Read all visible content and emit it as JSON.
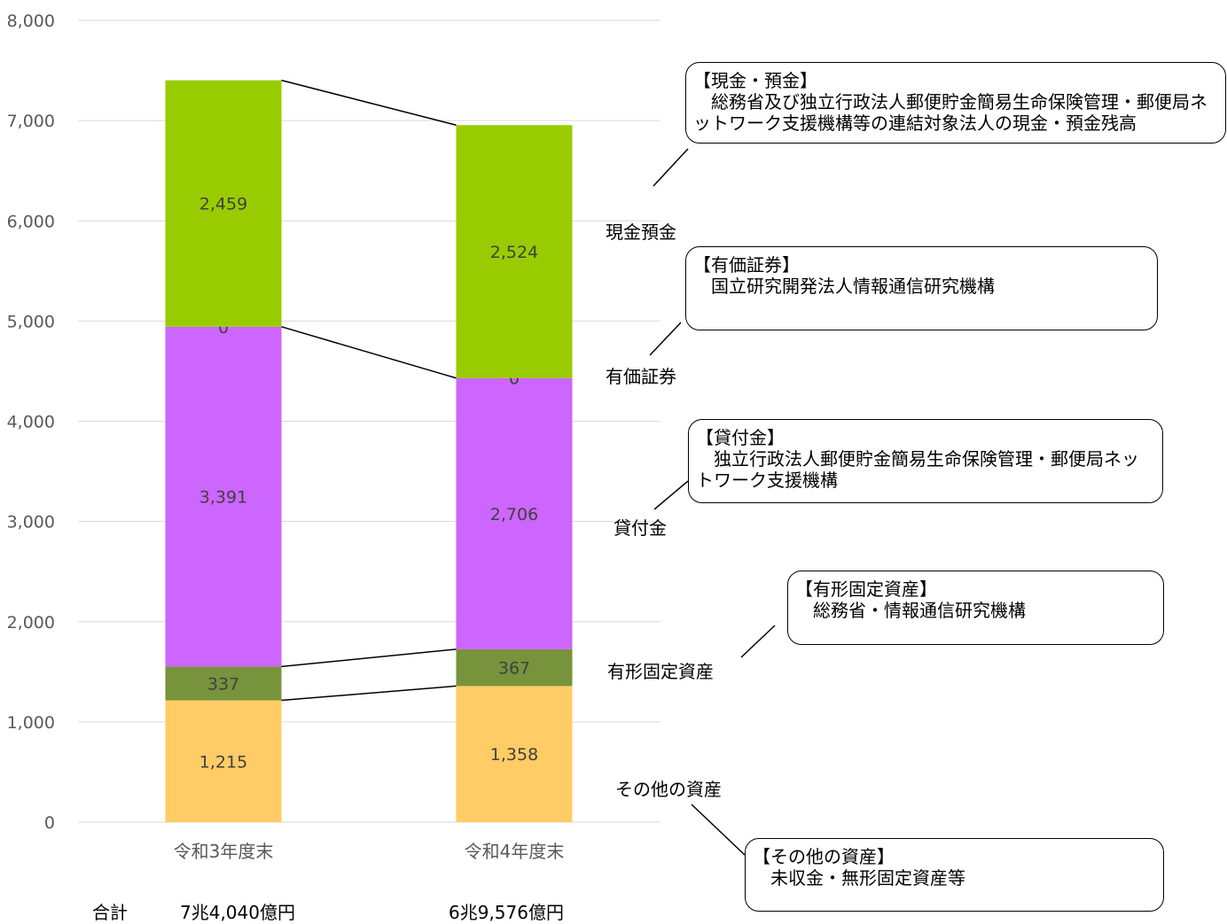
{
  "chart_data": {
    "type": "bar",
    "stacked": true,
    "categories": [
      "令和3年度末",
      "令和4年度末"
    ],
    "series": [
      {
        "name": "その他の資産",
        "values": [
          1215,
          1358
        ],
        "labels": [
          "1,215",
          "1,358"
        ],
        "color": "#FFCC66"
      },
      {
        "name": "有形固定資産",
        "values": [
          337,
          367
        ],
        "labels": [
          "337",
          "367"
        ],
        "color": "#77933C"
      },
      {
        "name": "貸付金",
        "values": [
          3391,
          2706
        ],
        "labels": [
          "3,391",
          "2,706"
        ],
        "color": "#CC66FF"
      },
      {
        "name": "有価証券",
        "values": [
          0,
          0
        ],
        "labels": [
          "0",
          "0"
        ],
        "color": "#CC66FF"
      },
      {
        "name": "現金預金",
        "values": [
          2459,
          2524
        ],
        "labels": [
          "2,459",
          "2,524"
        ],
        "color": "#99CC00"
      }
    ],
    "ylim": [
      0,
      8000
    ],
    "yticks": [
      0,
      1000,
      2000,
      3000,
      4000,
      5000,
      6000,
      7000,
      8000
    ],
    "ytick_labels": [
      "0",
      "1,000",
      "2,000",
      "3,000",
      "4,000",
      "5,000",
      "6,000",
      "7,000",
      "8,000"
    ],
    "grid": true
  },
  "series_labels": {
    "cash": "現金預金",
    "securities": "有価証券",
    "loans": "貸付金",
    "tangible": "有形固定資産",
    "other": "その他の資産"
  },
  "callouts": {
    "cash": {
      "title": "【現金・預金】",
      "body": "総務省及び独立行政法人郵便貯金簡易生命保険管理・郵便局ネットワーク支援機構等の連結対象法人の現金・預金残高"
    },
    "securities": {
      "title": "【有価証券】",
      "body": "国立研究開発法人情報通信研究機構"
    },
    "loans": {
      "title": "【貸付金】",
      "body": "独立行政法人郵便貯金簡易生命保険管理・郵便局ネットワーク支援機構"
    },
    "tangible": {
      "title": "【有形固定資産】",
      "body": "総務省・情報通信研究機構"
    },
    "other": {
      "title": "【その他の資産】",
      "body": "未収金・無形固定資産等"
    }
  },
  "totals": {
    "label": "合計",
    "values": [
      "7兆4,040億円",
      "6兆9,576億円"
    ]
  }
}
